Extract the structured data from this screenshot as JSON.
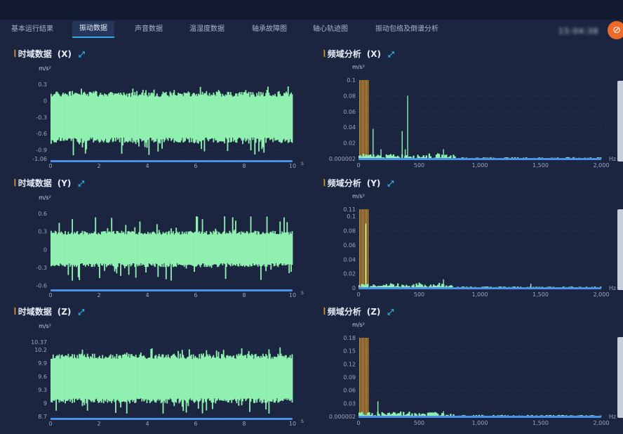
{
  "tabs": [
    {
      "label": "基本运行结果",
      "active": false
    },
    {
      "label": "振动数据",
      "active": true
    },
    {
      "label": "声音数据",
      "active": false
    },
    {
      "label": "温湿度数据",
      "active": false
    },
    {
      "label": "轴承故障图",
      "active": false
    },
    {
      "label": "轴心轨迹图",
      "active": false
    },
    {
      "label": "振动包络及倒谱分析",
      "active": false
    }
  ],
  "header": {
    "clock": "15:04:38",
    "action_icon": "forbidden-icon"
  },
  "colors": {
    "background": "#1b2540",
    "signal": "#8ff0b0",
    "accent": "#f5a623",
    "axis_line": "#4a90e8",
    "active_tab_underline": "#3fa0e8",
    "action_button": "#ee6a2b"
  },
  "panels": [
    {
      "title": "时域数据",
      "axis": "(X)",
      "unit": "m/s²",
      "x_unit": "s"
    },
    {
      "title": "频域分析",
      "axis": "(X)",
      "unit": "m/s²",
      "x_unit": "Hz"
    },
    {
      "title": "时域数据",
      "axis": "(Y)",
      "unit": "m/s²",
      "x_unit": "s"
    },
    {
      "title": "频域分析",
      "axis": "(Y)",
      "unit": "m/s²",
      "x_unit": "Hz"
    },
    {
      "title": "时域数据",
      "axis": "(Z)",
      "unit": "m/s²",
      "x_unit": "s"
    },
    {
      "title": "频域分析",
      "axis": "(Z)",
      "unit": "m/s²",
      "x_unit": "Hz"
    }
  ],
  "chart_data": [
    {
      "type": "area",
      "id": "time-x",
      "x_range": [
        0,
        10
      ],
      "x_ticks": [
        "0",
        "2",
        "4",
        "6",
        "8",
        "10"
      ],
      "y_range": [
        -1.06,
        0.3
      ],
      "y_ticks": [
        "0.3",
        "0",
        "-0.3",
        "-0.6",
        "-0.9",
        "-1.06"
      ],
      "series": [
        {
          "band_low": -0.72,
          "band_high": 0.12,
          "spike_low": -1.0,
          "spike_high": 0.28
        }
      ]
    },
    {
      "type": "bar",
      "id": "freq-x",
      "x_range": [
        0,
        2000
      ],
      "x_ticks": [
        "0",
        "500",
        "1,000",
        "1,500",
        "2,000"
      ],
      "y_range": [
        2e-06,
        0.1
      ],
      "y_ticks": [
        "0.1",
        "0.08",
        "0.06",
        "0.04",
        "0.02",
        "0.000002"
      ],
      "series": [
        {
          "peaks": [
            {
              "x": 120,
              "y": 0.038
            },
            {
              "x": 185,
              "y": 0.012
            },
            {
              "x": 360,
              "y": 0.035
            },
            {
              "x": 385,
              "y": 0.012
            },
            {
              "x": 405,
              "y": 0.08
            },
            {
              "x": 700,
              "y": 0.012
            }
          ]
        }
      ]
    },
    {
      "type": "area",
      "id": "time-y",
      "x_range": [
        0,
        10
      ],
      "x_ticks": [
        "0",
        "2",
        "4",
        "6",
        "8",
        "10"
      ],
      "y_range": [
        -0.64,
        0.6
      ],
      "y_ticks": [
        "0.6",
        "0.3",
        "0",
        "-0.3",
        "-0.6"
      ],
      "series": [
        {
          "band_low": -0.26,
          "band_high": 0.28,
          "spike_low": -0.52,
          "spike_high": 0.56
        }
      ]
    },
    {
      "type": "bar",
      "id": "freq-y",
      "x_range": [
        0,
        2000
      ],
      "x_ticks": [
        "0",
        "500",
        "1,000",
        "1,500",
        "2,000"
      ],
      "y_range": [
        0,
        0.11
      ],
      "y_ticks": [
        "0.11",
        "0.1",
        "0.08",
        "0.06",
        "0.04",
        "0.02",
        "0"
      ],
      "series": [
        {
          "peaks": [
            {
              "x": 60,
              "y": 0.09
            },
            {
              "x": 700,
              "y": 0.012
            },
            {
              "x": 1420,
              "y": 0.006
            }
          ]
        }
      ]
    },
    {
      "type": "area",
      "id": "time-z",
      "x_range": [
        0,
        10
      ],
      "x_ticks": [
        "0",
        "2",
        "4",
        "6",
        "8",
        "10"
      ],
      "y_range": [
        8.7,
        10.37
      ],
      "y_ticks": [
        "10.37",
        "10.2",
        "9.9",
        "9.6",
        "9.3",
        "9",
        "8.7"
      ],
      "series": [
        {
          "band_low": 9.05,
          "band_high": 10.05,
          "spike_low": 8.75,
          "spike_high": 10.25
        }
      ]
    },
    {
      "type": "bar",
      "id": "freq-z",
      "x_range": [
        0,
        2000
      ],
      "x_ticks": [
        "0",
        "500",
        "1,000",
        "1,500",
        "2,000"
      ],
      "y_range": [
        2e-06,
        0.18
      ],
      "y_ticks": [
        "0.18",
        "0.15",
        "0.12",
        "0.09",
        "0.06",
        "0.03",
        "0.000002"
      ],
      "series": [
        {
          "peaks": [
            {
              "x": 160,
              "y": 0.035
            },
            {
              "x": 700,
              "y": 0.012
            }
          ]
        }
      ]
    }
  ]
}
